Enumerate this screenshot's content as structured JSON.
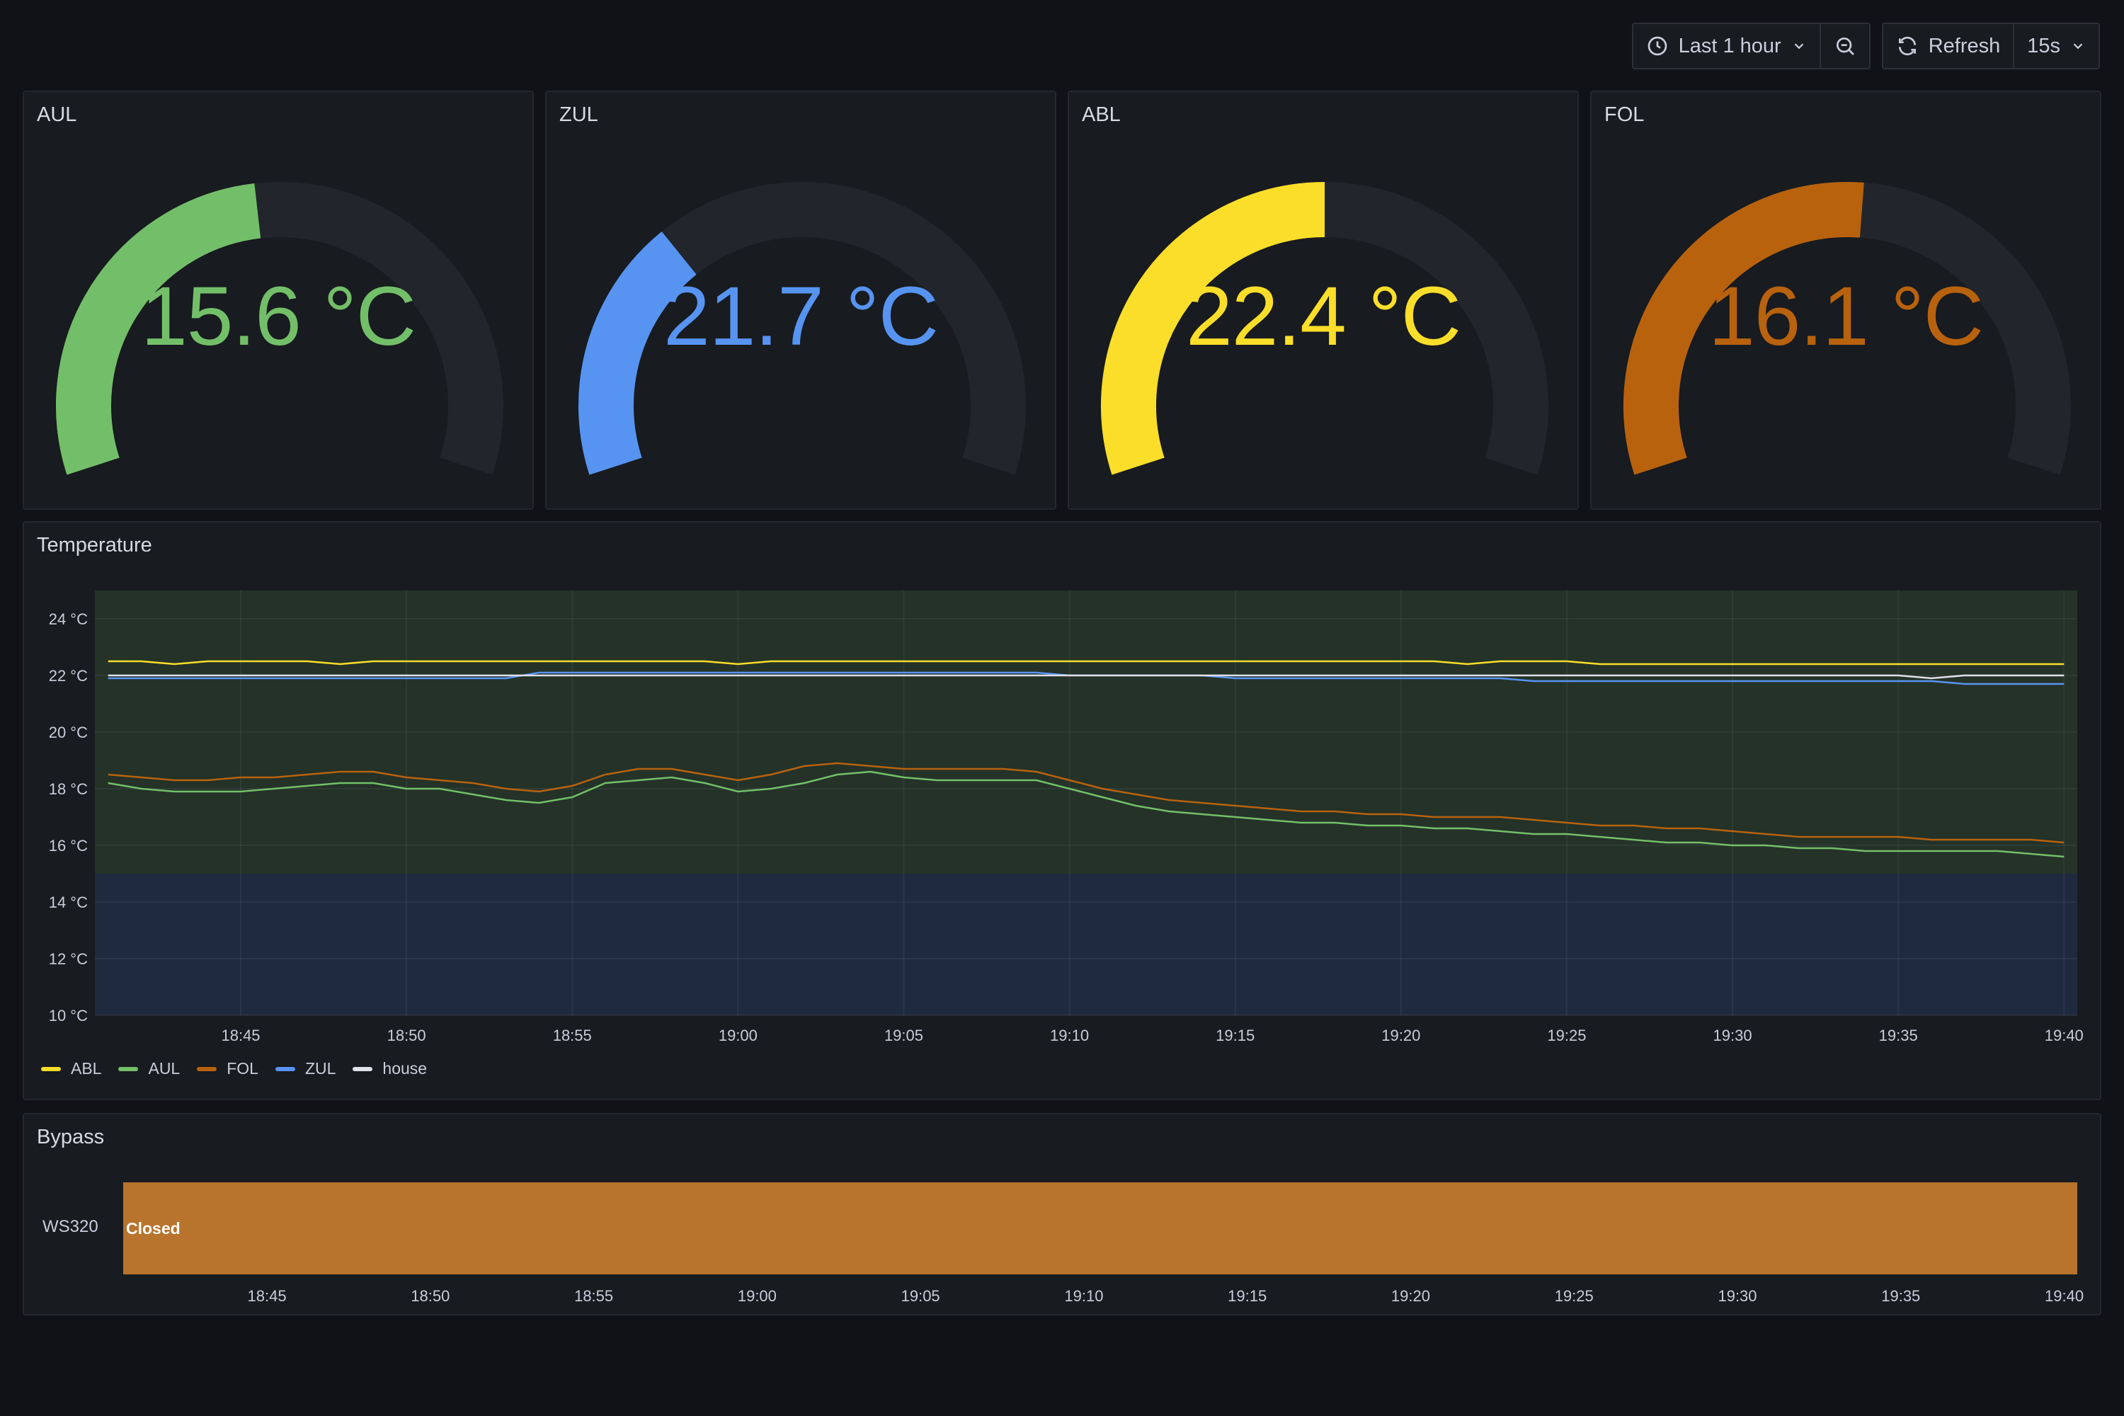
{
  "toolbar": {
    "time_range": "Last 1 hour",
    "refresh_label": "Refresh",
    "refresh_interval": "15s",
    "icons": [
      "clock-icon",
      "chevron-down-icon",
      "zoom-out-icon",
      "refresh-icon",
      "chevron-down-icon"
    ]
  },
  "gauges": [
    {
      "title": "AUL",
      "value": 15.6,
      "display": "15.6 °C",
      "color": "#73bf69",
      "fraction": 0.47
    },
    {
      "title": "ZUL",
      "value": 21.7,
      "display": "21.7 °C",
      "color": "#5794f2",
      "fraction": 0.32
    },
    {
      "title": "ABL",
      "value": 22.4,
      "display": "22.4 °C",
      "color": "#fade2a",
      "fraction": 0.5
    },
    {
      "title": "FOL",
      "value": 16.1,
      "display": "16.1 °C",
      "color": "#b8620e",
      "fraction": 0.52
    }
  ],
  "gauge_track_color": "#22252b",
  "temperature": {
    "title": "Temperature",
    "legend": [
      {
        "name": "ABL",
        "color": "#fade2a"
      },
      {
        "name": "AUL",
        "color": "#73bf69"
      },
      {
        "name": "FOL",
        "color": "#b8620e"
      },
      {
        "name": "ZUL",
        "color": "#5794f2"
      },
      {
        "name": "house",
        "color": "#e0e0e8"
      }
    ]
  },
  "bypass": {
    "title": "Bypass",
    "row_label": "WS320",
    "state": "Closed",
    "color": "#b8732d"
  },
  "chart_data": [
    {
      "type": "line",
      "title": "Temperature",
      "ylim": [
        10,
        25
      ],
      "yticks": [
        "24 °C",
        "22 °C",
        "20 °C",
        "18 °C",
        "16 °C",
        "14 °C",
        "12 °C",
        "10 °C"
      ],
      "ytick_values": [
        24,
        22,
        20,
        18,
        16,
        14,
        12,
        10
      ],
      "x_start": "18:41",
      "x_end": "19:40",
      "xticks": [
        "18:45",
        "18:50",
        "18:55",
        "19:00",
        "19:05",
        "19:10",
        "19:15",
        "19:20",
        "19:25",
        "19:30",
        "19:35",
        "19:40"
      ],
      "threshold_bands": [
        {
          "from": 10,
          "to": 15,
          "color": "#1f2a3f"
        },
        {
          "from": 15,
          "to": 25,
          "color": "#243228"
        }
      ],
      "grid": true,
      "legend_placement": "bottom-left",
      "x": [
        "18:41",
        "18:42",
        "18:43",
        "18:44",
        "18:45",
        "18:46",
        "18:47",
        "18:48",
        "18:49",
        "18:50",
        "18:51",
        "18:52",
        "18:53",
        "18:54",
        "18:55",
        "18:56",
        "18:57",
        "18:58",
        "18:59",
        "19:00",
        "19:01",
        "19:02",
        "19:03",
        "19:04",
        "19:05",
        "19:06",
        "19:07",
        "19:08",
        "19:09",
        "19:10",
        "19:11",
        "19:12",
        "19:13",
        "19:14",
        "19:15",
        "19:16",
        "19:17",
        "19:18",
        "19:19",
        "19:20",
        "19:21",
        "19:22",
        "19:23",
        "19:24",
        "19:25",
        "19:26",
        "19:27",
        "19:28",
        "19:29",
        "19:30",
        "19:31",
        "19:32",
        "19:33",
        "19:34",
        "19:35",
        "19:36",
        "19:37",
        "19:38",
        "19:39",
        "19:40"
      ],
      "series": [
        {
          "name": "ABL",
          "color": "#fade2a",
          "values": [
            22.5,
            22.5,
            22.4,
            22.5,
            22.5,
            22.5,
            22.5,
            22.4,
            22.5,
            22.5,
            22.5,
            22.5,
            22.5,
            22.5,
            22.5,
            22.5,
            22.5,
            22.5,
            22.5,
            22.4,
            22.5,
            22.5,
            22.5,
            22.5,
            22.5,
            22.5,
            22.5,
            22.5,
            22.5,
            22.5,
            22.5,
            22.5,
            22.5,
            22.5,
            22.5,
            22.5,
            22.5,
            22.5,
            22.5,
            22.5,
            22.5,
            22.4,
            22.5,
            22.5,
            22.5,
            22.4,
            22.4,
            22.4,
            22.4,
            22.4,
            22.4,
            22.4,
            22.4,
            22.4,
            22.4,
            22.4,
            22.4,
            22.4,
            22.4,
            22.4
          ]
        },
        {
          "name": "AUL",
          "color": "#73bf69",
          "values": [
            18.2,
            18.0,
            17.9,
            17.9,
            17.9,
            18.0,
            18.1,
            18.2,
            18.2,
            18.0,
            18.0,
            17.8,
            17.6,
            17.5,
            17.7,
            18.2,
            18.3,
            18.4,
            18.2,
            17.9,
            18.0,
            18.2,
            18.5,
            18.6,
            18.4,
            18.3,
            18.3,
            18.3,
            18.3,
            18.0,
            17.7,
            17.4,
            17.2,
            17.1,
            17.0,
            16.9,
            16.8,
            16.8,
            16.7,
            16.7,
            16.6,
            16.6,
            16.5,
            16.4,
            16.4,
            16.3,
            16.2,
            16.1,
            16.1,
            16.0,
            16.0,
            15.9,
            15.9,
            15.8,
            15.8,
            15.8,
            15.8,
            15.8,
            15.7,
            15.6
          ]
        },
        {
          "name": "FOL",
          "color": "#b8620e",
          "values": [
            18.5,
            18.4,
            18.3,
            18.3,
            18.4,
            18.4,
            18.5,
            18.6,
            18.6,
            18.4,
            18.3,
            18.2,
            18.0,
            17.9,
            18.1,
            18.5,
            18.7,
            18.7,
            18.5,
            18.3,
            18.5,
            18.8,
            18.9,
            18.8,
            18.7,
            18.7,
            18.7,
            18.7,
            18.6,
            18.3,
            18.0,
            17.8,
            17.6,
            17.5,
            17.4,
            17.3,
            17.2,
            17.2,
            17.1,
            17.1,
            17.0,
            17.0,
            17.0,
            16.9,
            16.8,
            16.7,
            16.7,
            16.6,
            16.6,
            16.5,
            16.4,
            16.3,
            16.3,
            16.3,
            16.3,
            16.2,
            16.2,
            16.2,
            16.2,
            16.1
          ]
        },
        {
          "name": "ZUL",
          "color": "#5794f2",
          "values": [
            21.9,
            21.9,
            21.9,
            21.9,
            21.9,
            21.9,
            21.9,
            21.9,
            21.9,
            21.9,
            21.9,
            21.9,
            21.9,
            22.1,
            22.1,
            22.1,
            22.1,
            22.1,
            22.1,
            22.1,
            22.1,
            22.1,
            22.1,
            22.1,
            22.1,
            22.1,
            22.1,
            22.1,
            22.1,
            22.0,
            22.0,
            22.0,
            22.0,
            22.0,
            21.9,
            21.9,
            21.9,
            21.9,
            21.9,
            21.9,
            21.9,
            21.9,
            21.9,
            21.8,
            21.8,
            21.8,
            21.8,
            21.8,
            21.8,
            21.8,
            21.8,
            21.8,
            21.8,
            21.8,
            21.8,
            21.8,
            21.7,
            21.7,
            21.7,
            21.7
          ]
        },
        {
          "name": "house",
          "color": "#e0e0e8",
          "values": [
            22.0,
            22.0,
            22.0,
            22.0,
            22.0,
            22.0,
            22.0,
            22.0,
            22.0,
            22.0,
            22.0,
            22.0,
            22.0,
            22.0,
            22.0,
            22.0,
            22.0,
            22.0,
            22.0,
            22.0,
            22.0,
            22.0,
            22.0,
            22.0,
            22.0,
            22.0,
            22.0,
            22.0,
            22.0,
            22.0,
            22.0,
            22.0,
            22.0,
            22.0,
            22.0,
            22.0,
            22.0,
            22.0,
            22.0,
            22.0,
            22.0,
            22.0,
            22.0,
            22.0,
            22.0,
            22.0,
            22.0,
            22.0,
            22.0,
            22.0,
            22.0,
            22.0,
            22.0,
            22.0,
            22.0,
            21.9,
            22.0,
            22.0,
            22.0,
            22.0
          ]
        }
      ]
    },
    {
      "type": "bar",
      "title": "Bypass",
      "categories": [
        "WS320"
      ],
      "states": [
        {
          "label": "Closed",
          "from": "18:41",
          "to": "19:40",
          "color": "#b8732d"
        }
      ],
      "xticks": [
        "18:45",
        "18:50",
        "18:55",
        "19:00",
        "19:05",
        "19:10",
        "19:15",
        "19:20",
        "19:25",
        "19:30",
        "19:35",
        "19:40"
      ]
    }
  ]
}
